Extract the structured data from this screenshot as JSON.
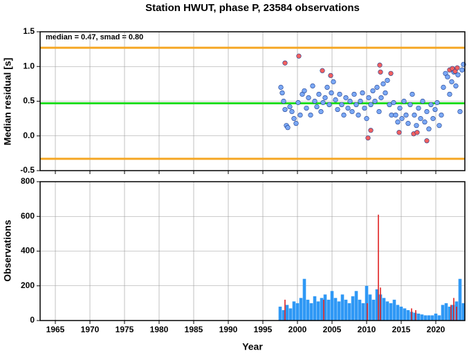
{
  "chart_data": [
    {
      "type": "scatter",
      "title": "Station HWUT, phase P, 23584 observations",
      "ylabel": "Median residual [s]",
      "annotation": "median = 0.47, smad = 0.80",
      "xlim": [
        1962.8,
        2024.2
      ],
      "xticks": [
        1965,
        1970,
        1975,
        1980,
        1985,
        1990,
        1995,
        2000,
        2005,
        2010,
        2015,
        2020
      ],
      "ylim": [
        -0.5,
        1.5
      ],
      "yticks": [
        -0.5,
        {
          "value": 0,
          "label": "0.0"
        },
        0.5,
        {
          "value": 1,
          "label": "1.0"
        },
        1.5
      ],
      "grid": true,
      "hlines": [
        {
          "value": 1.27,
          "color": "#f5a623"
        },
        {
          "value": -0.33,
          "color": "#f5a623"
        },
        {
          "value": 0.47,
          "color": "#22dd22"
        }
      ],
      "series": [
        {
          "color": "#7aa8f5",
          "x": [
            1997.6,
            1997.8,
            1998.0,
            1998.2,
            1998.4,
            1998.6,
            1998.9,
            1999.2,
            1999.5,
            1999.8,
            2000.1,
            2000.4,
            2000.7,
            2001.0,
            2001.3,
            2001.6,
            2001.9,
            2002.2,
            2002.5,
            2002.8,
            2003.1,
            2003.4,
            2003.7,
            2004.0,
            2004.3,
            2004.6,
            2004.9,
            2005.2,
            2005.5,
            2005.8,
            2006.1,
            2006.4,
            2006.7,
            2007.0,
            2007.3,
            2007.6,
            2007.9,
            2008.2,
            2008.5,
            2008.8,
            2009.1,
            2009.4,
            2009.7,
            2010.0,
            2010.3,
            2010.6,
            2010.9,
            2011.2,
            2011.5,
            2011.8,
            2012.1,
            2012.4,
            2012.7,
            2013.0,
            2013.3,
            2013.6,
            2013.9,
            2014.2,
            2014.5,
            2014.8,
            2015.1,
            2015.4,
            2015.7,
            2016.0,
            2016.3,
            2016.6,
            2016.9,
            2017.2,
            2017.5,
            2017.8,
            2018.1,
            2018.4,
            2018.7,
            2019.0,
            2019.3,
            2019.6,
            2019.9,
            2020.2,
            2020.5,
            2020.8,
            2021.1,
            2021.4,
            2021.7,
            2022.0,
            2022.3,
            2022.6,
            2022.9,
            2023.2,
            2023.5,
            2023.8,
            2024.0
          ],
          "values": [
            0.7,
            0.62,
            0.5,
            0.38,
            0.15,
            0.12,
            0.42,
            0.35,
            0.25,
            0.18,
            0.48,
            0.3,
            0.6,
            0.65,
            0.4,
            0.55,
            0.3,
            0.72,
            0.5,
            0.42,
            0.6,
            0.35,
            0.48,
            0.55,
            0.7,
            0.45,
            0.62,
            0.78,
            0.52,
            0.38,
            0.6,
            0.45,
            0.3,
            0.55,
            0.4,
            0.5,
            0.35,
            0.6,
            0.45,
            0.3,
            0.5,
            0.62,
            0.4,
            0.25,
            0.55,
            0.45,
            0.65,
            0.5,
            0.7,
            0.35,
            0.55,
            0.75,
            0.62,
            0.8,
            0.45,
            0.3,
            0.48,
            0.3,
            0.2,
            0.4,
            0.25,
            0.5,
            0.3,
            0.18,
            0.45,
            0.6,
            0.3,
            0.15,
            0.4,
            0.25,
            0.5,
            0.2,
            0.35,
            0.1,
            0.45,
            0.25,
            0.38,
            0.48,
            0.15,
            0.3,
            0.7,
            0.9,
            0.85,
            0.6,
            0.78,
            0.92,
            0.72,
            0.88,
            0.35,
            0.95,
            1.03
          ]
        },
        {
          "color": "#f26060",
          "x": [
            1998.2,
            2000.2,
            2003.6,
            2004.8,
            2010.2,
            2010.6,
            2011.9,
            2012.0,
            2013.5,
            2014.7,
            2016.8,
            2017.3,
            2018.7,
            2022.0,
            2022.4,
            2022.8,
            2023.1
          ],
          "values": [
            1.05,
            1.15,
            0.94,
            0.87,
            -0.03,
            0.08,
            1.02,
            0.92,
            0.9,
            0.05,
            0.03,
            0.05,
            -0.07,
            0.95,
            0.97,
            0.93,
            0.98
          ]
        }
      ]
    },
    {
      "type": "bar",
      "xlabel": "Year",
      "ylabel": "Observations",
      "xlim": [
        1962.8,
        2024.2
      ],
      "xticks": [
        1965,
        1970,
        1975,
        1980,
        1985,
        1990,
        1995,
        2000,
        2005,
        2010,
        2015,
        2020
      ],
      "ylim": [
        0,
        800
      ],
      "yticks": [
        0,
        200,
        400,
        600,
        800
      ],
      "grid": true,
      "series": [
        {
          "color": "#2f98f5",
          "x": [
            1997.5,
            1998,
            1998.5,
            1999,
            1999.5,
            2000,
            2000.5,
            2001,
            2001.5,
            2002,
            2002.5,
            2003,
            2003.5,
            2004,
            2004.5,
            2005,
            2005.5,
            2006,
            2006.5,
            2007,
            2007.5,
            2008,
            2008.5,
            2009,
            2009.5,
            2010,
            2010.5,
            2011,
            2011.5,
            2012,
            2012.5,
            2013,
            2013.5,
            2014,
            2014.5,
            2015,
            2015.5,
            2016,
            2016.5,
            2017,
            2017.5,
            2018,
            2018.5,
            2019,
            2019.5,
            2020,
            2020.5,
            2021,
            2021.5,
            2022,
            2022.5,
            2023,
            2023.5,
            2024
          ],
          "values": [
            80,
            60,
            90,
            70,
            110,
            100,
            130,
            240,
            120,
            100,
            140,
            110,
            130,
            150,
            120,
            170,
            130,
            110,
            150,
            120,
            100,
            140,
            170,
            120,
            100,
            200,
            150,
            120,
            180,
            150,
            130,
            110,
            100,
            120,
            90,
            80,
            70,
            60,
            50,
            45,
            40,
            35,
            30,
            30,
            30,
            40,
            30,
            90,
            100,
            80,
            90,
            110,
            240,
            100
          ]
        },
        {
          "color": "#e02020",
          "x": [
            1998.2,
            2003.8,
            2010.1,
            2011.7,
            2012.0,
            2016.5,
            2017.1,
            2022.2,
            2022.6,
            2023.0
          ],
          "values": [
            120,
            120,
            100,
            610,
            190,
            70,
            60,
            90,
            130,
            80
          ]
        }
      ]
    }
  ]
}
